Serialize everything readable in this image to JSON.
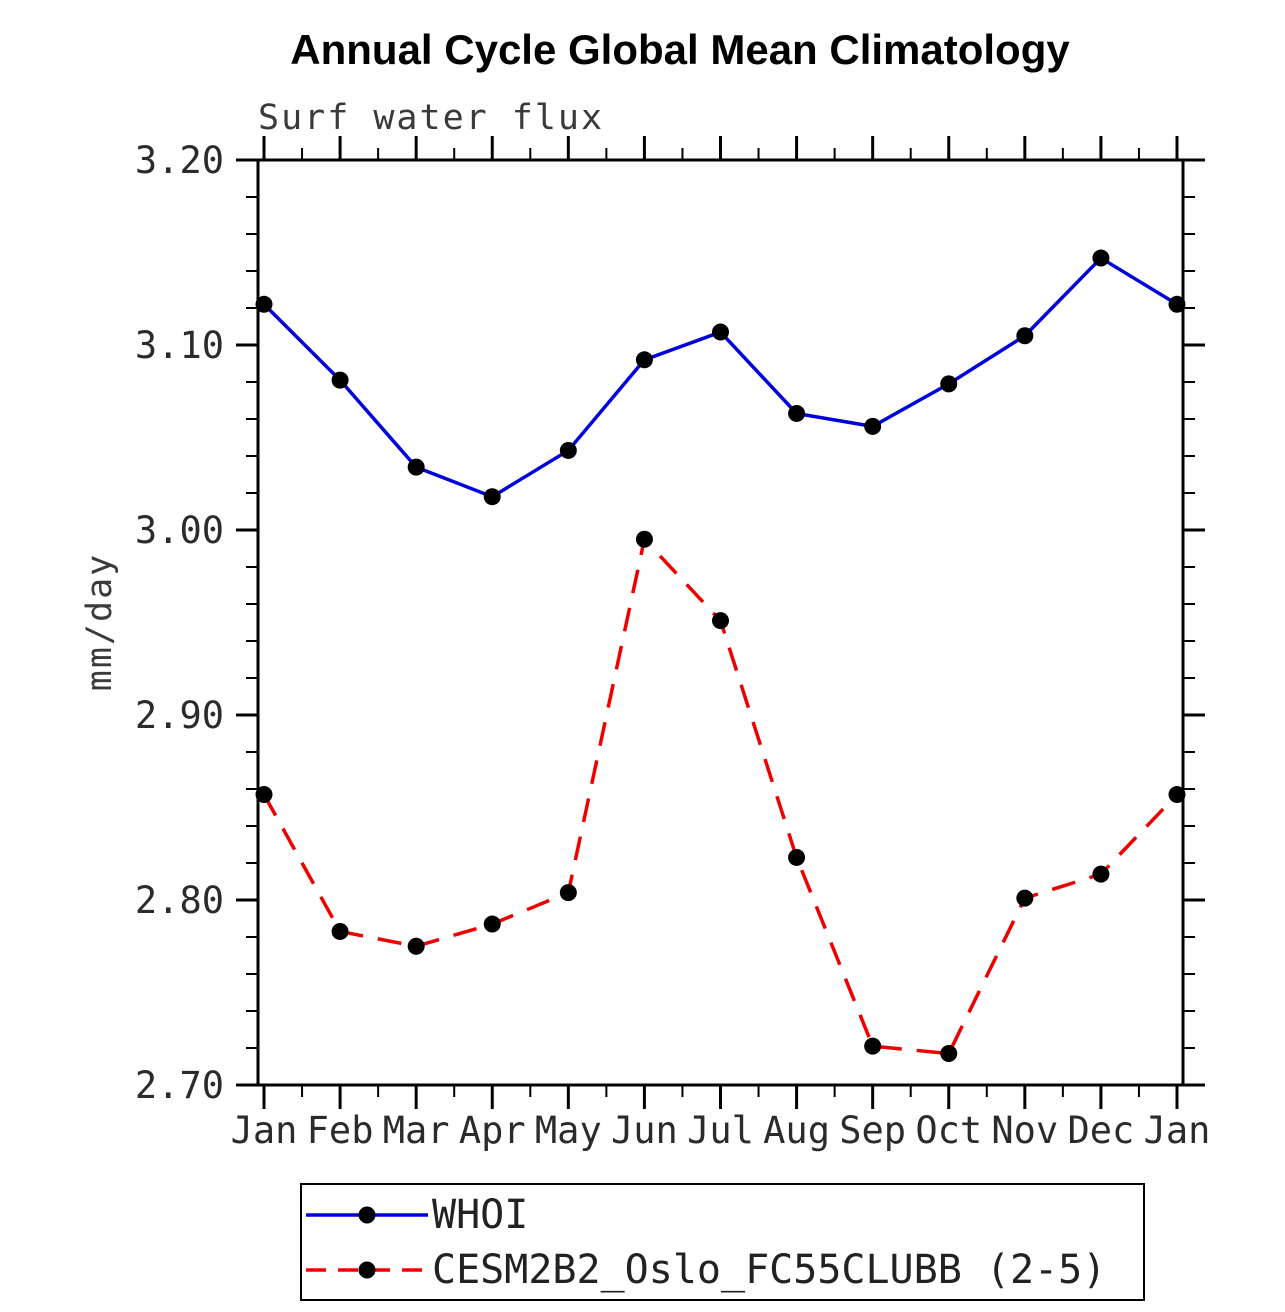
{
  "chart_data": {
    "type": "line",
    "title": "Annual Cycle Global Mean Climatology",
    "subtitle": "Surf water flux",
    "ylabel": "mm/day",
    "xlabel": "",
    "categories": [
      "Jan",
      "Feb",
      "Mar",
      "Apr",
      "May",
      "Jun",
      "Jul",
      "Aug",
      "Sep",
      "Oct",
      "Nov",
      "Dec",
      "Jan"
    ],
    "ylim": [
      2.7,
      3.2
    ],
    "yticks": {
      "values": [
        2.7,
        2.8,
        2.9,
        3.0,
        3.1,
        3.2
      ],
      "labels": [
        "2.70",
        "2.80",
        "2.90",
        "3.00",
        "3.10",
        "3.20"
      ],
      "minor_step": 0.02
    },
    "grid": false,
    "legend_position": "bottom",
    "axis_color": "#000000",
    "text_color": "#2b2b2b",
    "series": [
      {
        "name": "WHOI",
        "color": "#0000dd",
        "style": "solid",
        "marker": "circle",
        "marker_color": "#000000",
        "values": [
          3.122,
          3.081,
          3.034,
          3.018,
          3.043,
          3.092,
          3.107,
          3.063,
          3.056,
          3.079,
          3.105,
          3.147,
          3.122
        ]
      },
      {
        "name": "CESM2B2_Oslo_FC55CLUBB (2-5)",
        "color": "#ee0000",
        "style": "dashed",
        "marker": "circle",
        "marker_color": "#000000",
        "values": [
          2.857,
          2.783,
          2.775,
          2.787,
          2.804,
          2.995,
          2.951,
          2.823,
          2.721,
          2.717,
          2.801,
          2.814,
          2.857
        ]
      }
    ]
  }
}
